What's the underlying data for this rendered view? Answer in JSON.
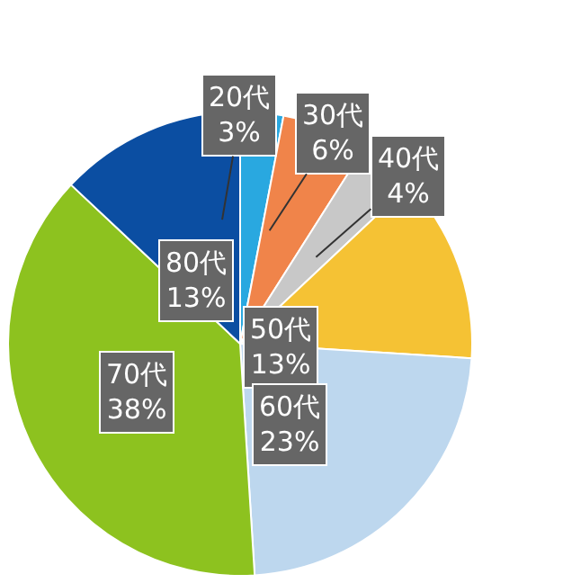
{
  "chart_data": {
    "type": "pie",
    "categories": [
      "20代",
      "30代",
      "40代",
      "50代",
      "60代",
      "70代",
      "80代"
    ],
    "values": [
      3,
      6,
      4,
      13,
      23,
      38,
      13
    ],
    "value_labels": [
      "3%",
      "6%",
      "4%",
      "13%",
      "23%",
      "38%",
      "13%"
    ],
    "colors": [
      "#29a8e0",
      "#f0844a",
      "#c8c8c8",
      "#f5c234",
      "#bdd7ee",
      "#8dc21f",
      "#0b4ea2"
    ],
    "legend": false
  }
}
